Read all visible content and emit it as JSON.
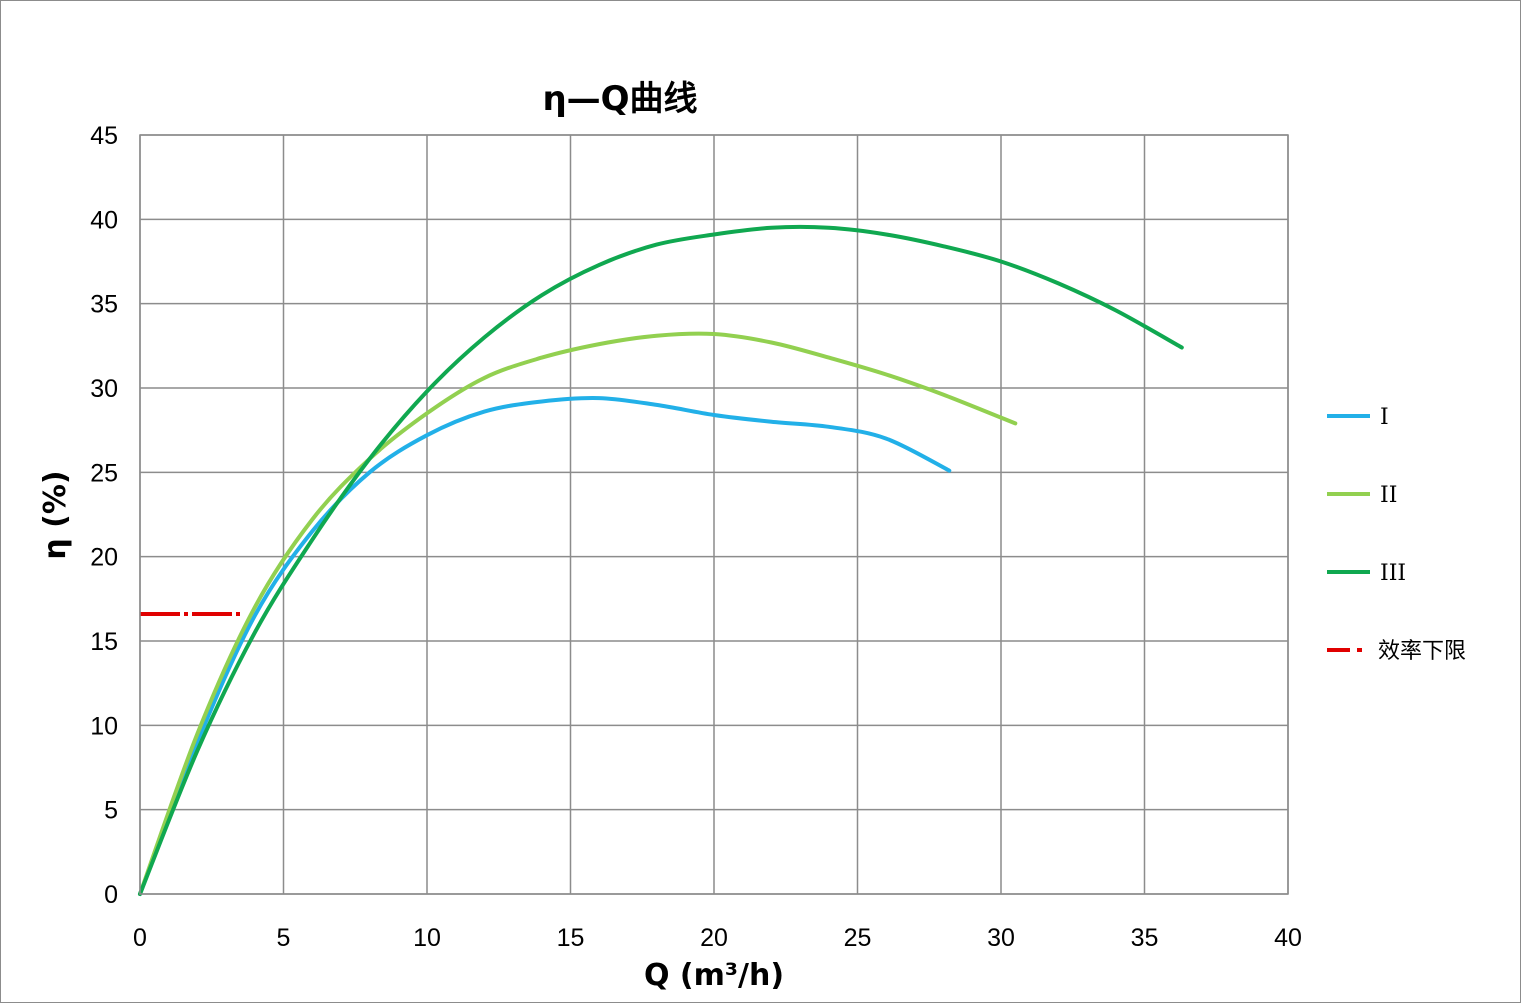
{
  "chart_data": {
    "type": "line",
    "title": "η—Q曲线",
    "xlabel": "Q (m³/h)",
    "ylabel": "η (%)",
    "xlim": [
      0,
      40
    ],
    "ylim": [
      0,
      45
    ],
    "xticks": [
      "0",
      "5",
      "10",
      "15",
      "20",
      "25",
      "30",
      "35",
      "40"
    ],
    "yticks": [
      "0",
      "5",
      "10",
      "15",
      "20",
      "25",
      "30",
      "35",
      "40",
      "45"
    ],
    "grid": true,
    "legend_position": "right",
    "series": [
      {
        "name": "I",
        "color": "#22b0e8",
        "dash": "solid",
        "points": [
          [
            0,
            0
          ],
          [
            2,
            9
          ],
          [
            4,
            16.5
          ],
          [
            6,
            21.5
          ],
          [
            8,
            25
          ],
          [
            10,
            27.2
          ],
          [
            12,
            28.6
          ],
          [
            14,
            29.2
          ],
          [
            16,
            29.4
          ],
          [
            18,
            29
          ],
          [
            20,
            28.4
          ],
          [
            22,
            28
          ],
          [
            24,
            27.7
          ],
          [
            26,
            27
          ],
          [
            28.2,
            25.1
          ]
        ]
      },
      {
        "name": "II",
        "color": "#92d050",
        "dash": "solid",
        "points": [
          [
            0,
            0
          ],
          [
            2,
            9.5
          ],
          [
            4,
            17
          ],
          [
            6,
            22.2
          ],
          [
            8,
            25.8
          ],
          [
            10,
            28.5
          ],
          [
            12,
            30.6
          ],
          [
            14,
            31.8
          ],
          [
            16,
            32.6
          ],
          [
            18,
            33.1
          ],
          [
            20,
            33.2
          ],
          [
            22,
            32.7
          ],
          [
            24,
            31.8
          ],
          [
            26,
            30.8
          ],
          [
            28,
            29.6
          ],
          [
            30.5,
            27.9
          ]
        ]
      },
      {
        "name": "III",
        "color": "#10a850",
        "dash": "solid",
        "points": [
          [
            0,
            0
          ],
          [
            2,
            8.5
          ],
          [
            4,
            15.5
          ],
          [
            6,
            21
          ],
          [
            8,
            25.8
          ],
          [
            10,
            29.8
          ],
          [
            12,
            33
          ],
          [
            14,
            35.5
          ],
          [
            16,
            37.3
          ],
          [
            18,
            38.5
          ],
          [
            20,
            39.1
          ],
          [
            22,
            39.5
          ],
          [
            24,
            39.5
          ],
          [
            26,
            39.1
          ],
          [
            28,
            38.4
          ],
          [
            30,
            37.5
          ],
          [
            32,
            36.2
          ],
          [
            34,
            34.6
          ],
          [
            36.3,
            32.4
          ]
        ]
      },
      {
        "name": "效率下限",
        "color": "#e00000",
        "dash": "dashdot",
        "points": [
          [
            0,
            16.6
          ],
          [
            3.5,
            16.6
          ]
        ]
      }
    ]
  }
}
